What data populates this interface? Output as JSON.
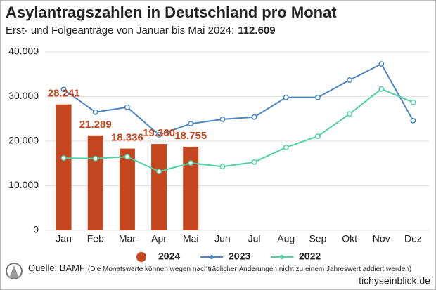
{
  "chart_data": {
    "type": "bar",
    "title": "Asylantragszahlen in Deutschland pro Monat",
    "subtitle": "Erst- und Folgeanträge von Januar bis Mai 2024:",
    "subtitle_total": "112.609",
    "categories": [
      "Jan",
      "Feb",
      "Mar",
      "Apr",
      "Mai",
      "Jun",
      "Jul",
      "Aug",
      "Sep",
      "Okt",
      "Nov",
      "Dez"
    ],
    "series": [
      {
        "name": "2024",
        "type": "bar",
        "color": "#c4461f",
        "values": [
          28241,
          21289,
          18336,
          19360,
          18755,
          null,
          null,
          null,
          null,
          null,
          null,
          null
        ],
        "value_labels": [
          "28.241",
          "21.289",
          "18.336",
          "19.360",
          "18.755",
          null,
          null,
          null,
          null,
          null,
          null,
          null
        ]
      },
      {
        "name": "2023",
        "type": "line",
        "color": "#4a86c5",
        "values": [
          31600,
          26500,
          27600,
          21400,
          23900,
          24900,
          25400,
          29800,
          29800,
          33700,
          37300,
          24600
        ]
      },
      {
        "name": "2022",
        "type": "line",
        "color": "#4fd1a5",
        "values": [
          16200,
          16100,
          16500,
          13200,
          15100,
          14300,
          15300,
          18600,
          21100,
          26100,
          31700,
          28700
        ]
      }
    ],
    "ylim": [
      0,
      40000
    ],
    "yticks": [
      0,
      {
        "value": 10000,
        "label": "10.000"
      },
      {
        "value": 20000,
        "label": "20.000"
      },
      {
        "value": 30000,
        "label": "30.000"
      },
      {
        "value": 40000,
        "label": "40.000"
      }
    ],
    "grid": true,
    "legend": "bottom",
    "source": "Quelle: BAMF",
    "note": "(Die Monatswerte können wegen nachträglicher Änderungen nicht zu einem Jahreswert addiert werden)",
    "brand": "tichyseinblick.de"
  }
}
